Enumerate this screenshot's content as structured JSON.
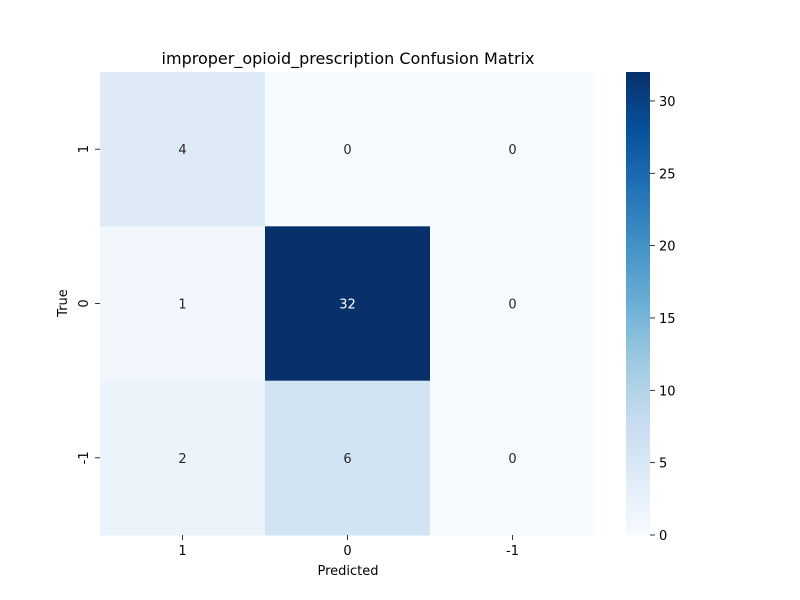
{
  "chart_data": {
    "type": "heatmap",
    "title": "improper_opioid_prescription Confusion Matrix",
    "xlabel": "Predicted",
    "ylabel": "True",
    "x_categories": [
      "1",
      "0",
      "-1"
    ],
    "y_categories": [
      "1",
      "0",
      "-1"
    ],
    "values": [
      [
        4,
        0,
        0
      ],
      [
        1,
        32,
        0
      ],
      [
        2,
        6,
        0
      ]
    ],
    "colormap": "Blues",
    "colorbar": {
      "range": [
        0,
        32
      ],
      "ticks": [
        0,
        5,
        10,
        15,
        20,
        25,
        30
      ]
    },
    "colors": {
      "low": "#f7fbff",
      "high": "#08306b"
    }
  }
}
